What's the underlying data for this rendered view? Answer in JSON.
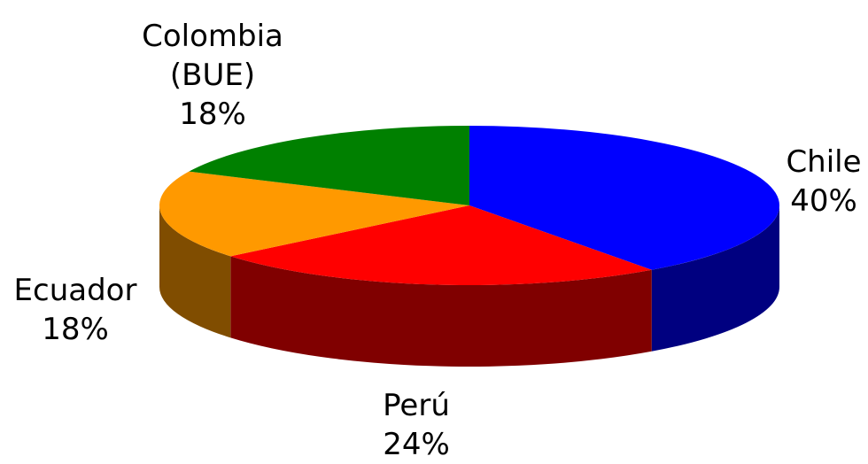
{
  "chart_data": {
    "type": "pie3d",
    "categories": [
      "Chile",
      "Perú",
      "Ecuador",
      "Colombia (BUE)"
    ],
    "values": [
      40,
      24,
      18,
      18
    ],
    "value_labels": [
      "40%",
      "24%",
      "18%",
      "18%"
    ],
    "colors": [
      "#0000ff",
      "#ff0000",
      "#ff9900",
      "#008000"
    ]
  }
}
